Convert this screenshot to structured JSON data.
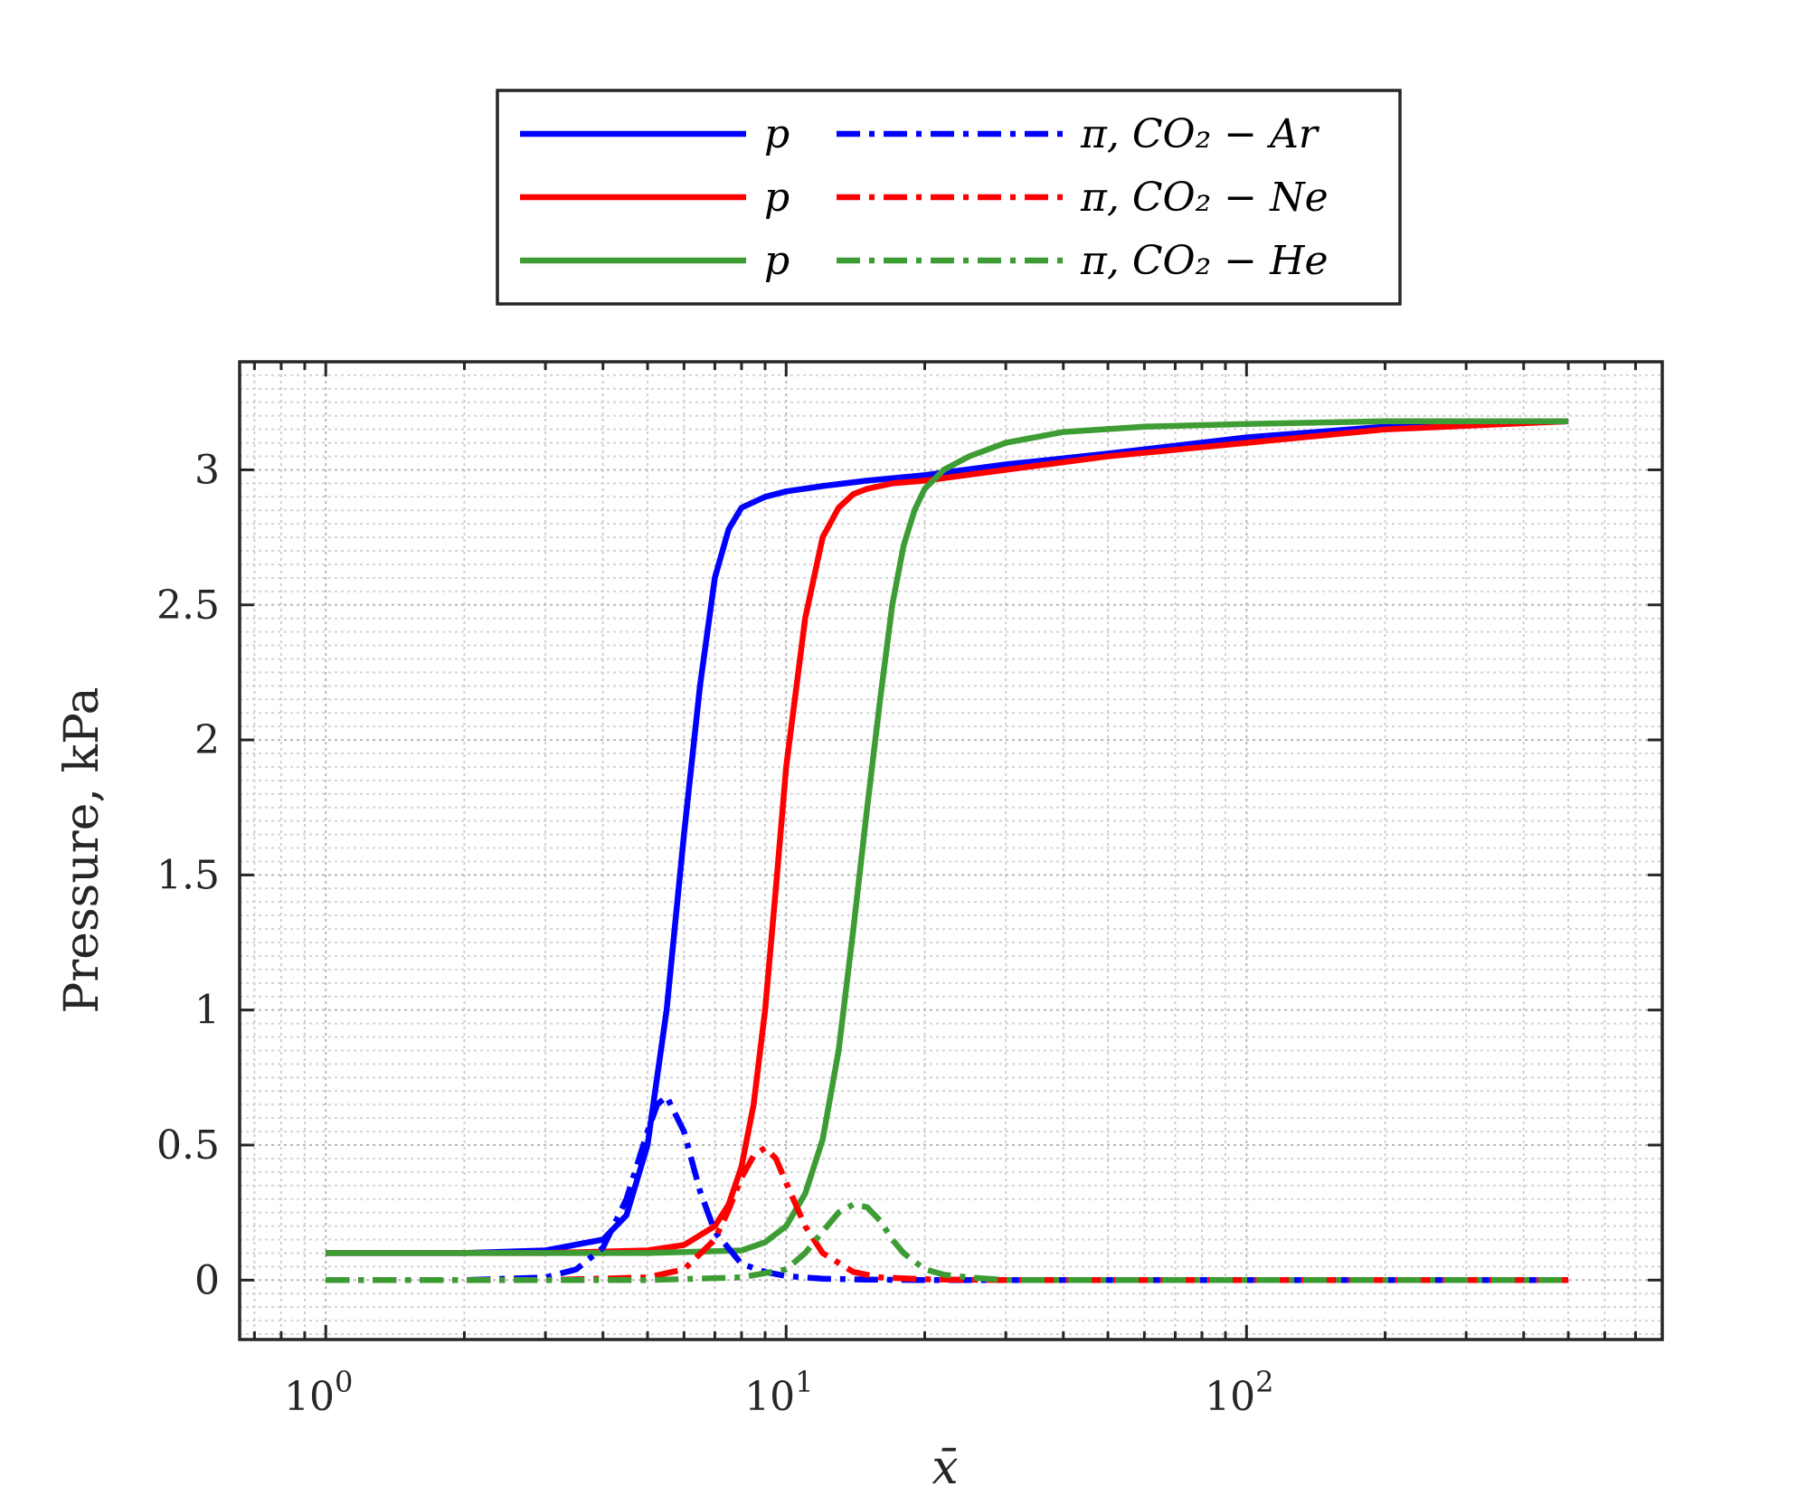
{
  "chart_data": {
    "type": "line",
    "xlabel": "x̄",
    "ylabel": "Pressure, kPa",
    "xscale": "log",
    "xlim": [
      0.65,
      800
    ],
    "ylim": [
      -0.22,
      3.4
    ],
    "grid": "on (major and minor, dotted)",
    "legend_position": "top, outside plot",
    "xticks": [
      {
        "value": 1,
        "base": "10",
        "exp": "0"
      },
      {
        "value": 10,
        "base": "10",
        "exp": "1"
      },
      {
        "value": 100,
        "base": "10",
        "exp": "2"
      }
    ],
    "yticks": [
      {
        "value": 0,
        "label": "0"
      },
      {
        "value": 0.5,
        "label": "0.5"
      },
      {
        "value": 1,
        "label": "1"
      },
      {
        "value": 1.5,
        "label": "1.5"
      },
      {
        "value": 2,
        "label": "2"
      },
      {
        "value": 2.5,
        "label": "2.5"
      },
      {
        "value": 3,
        "label": "3"
      }
    ],
    "series": [
      {
        "name": "p",
        "color": "#0000ff",
        "style": "solid",
        "x": [
          1,
          2,
          3,
          4,
          4.5,
          5,
          5.5,
          6,
          6.5,
          7,
          7.5,
          8,
          9,
          10,
          12,
          15,
          20,
          30,
          50,
          100,
          200,
          500
        ],
        "y": [
          0.1,
          0.1,
          0.11,
          0.15,
          0.24,
          0.5,
          1.0,
          1.65,
          2.2,
          2.6,
          2.78,
          2.86,
          2.9,
          2.92,
          2.94,
          2.96,
          2.98,
          3.02,
          3.06,
          3.12,
          3.16,
          3.18
        ]
      },
      {
        "name": "p",
        "color": "#ff0000",
        "style": "solid",
        "x": [
          1,
          3,
          5,
          6,
          7,
          7.5,
          8,
          8.5,
          9,
          9.5,
          10,
          11,
          12,
          13,
          14,
          15,
          17,
          20,
          30,
          50,
          100,
          200,
          500
        ],
        "y": [
          0.1,
          0.1,
          0.11,
          0.13,
          0.2,
          0.28,
          0.42,
          0.65,
          1.0,
          1.45,
          1.9,
          2.45,
          2.75,
          2.86,
          2.91,
          2.93,
          2.95,
          2.96,
          3.0,
          3.05,
          3.1,
          3.15,
          3.18
        ]
      },
      {
        "name": "p",
        "color": "#3e9c35",
        "style": "solid",
        "x": [
          1,
          5,
          8,
          9,
          10,
          11,
          12,
          13,
          14,
          15,
          16,
          17,
          18,
          19,
          20,
          22,
          25,
          30,
          40,
          60,
          100,
          200,
          500
        ],
        "y": [
          0.1,
          0.1,
          0.11,
          0.14,
          0.2,
          0.32,
          0.52,
          0.85,
          1.3,
          1.75,
          2.15,
          2.5,
          2.72,
          2.85,
          2.93,
          3.0,
          3.05,
          3.1,
          3.14,
          3.16,
          3.17,
          3.18,
          3.18
        ]
      },
      {
        "name": "π, CO₂ − Ar",
        "color": "#0000ff",
        "style": "dashdot",
        "x": [
          1,
          2,
          3,
          3.5,
          4,
          4.5,
          5,
          5.25,
          5.5,
          6,
          6.5,
          7,
          8,
          9,
          10,
          12,
          15,
          20,
          50,
          100,
          200,
          500
        ],
        "y": [
          0.0,
          0.0,
          0.01,
          0.04,
          0.12,
          0.3,
          0.55,
          0.65,
          0.68,
          0.55,
          0.33,
          0.18,
          0.06,
          0.03,
          0.015,
          0.005,
          0.002,
          0.0,
          0.0,
          0.0,
          0.0,
          0.0
        ]
      },
      {
        "name": "π, CO₂ − Ne",
        "color": "#ff0000",
        "style": "dashdot",
        "x": [
          1,
          3,
          5,
          6,
          7,
          7.5,
          8,
          8.5,
          9,
          9.5,
          10,
          11,
          12,
          14,
          16,
          20,
          30,
          50,
          100,
          500
        ],
        "y": [
          0.0,
          0.0,
          0.01,
          0.04,
          0.15,
          0.26,
          0.38,
          0.46,
          0.49,
          0.45,
          0.36,
          0.2,
          0.1,
          0.03,
          0.01,
          0.003,
          0.0,
          0.0,
          0.0,
          0.0
        ]
      },
      {
        "name": "π, CO₂ − He",
        "color": "#3e9c35",
        "style": "dashdot",
        "x": [
          1,
          5,
          8,
          10,
          11,
          12,
          13,
          14,
          15,
          16,
          17,
          18,
          20,
          22,
          25,
          30,
          50,
          100,
          500
        ],
        "y": [
          0.0,
          0.0,
          0.01,
          0.04,
          0.1,
          0.18,
          0.25,
          0.28,
          0.27,
          0.22,
          0.15,
          0.1,
          0.04,
          0.02,
          0.01,
          0.0,
          0.0,
          0.0,
          0.0
        ]
      }
    ],
    "legend": {
      "columns": [
        [
          {
            "label": "p",
            "color": "#0000ff",
            "style": "solid"
          },
          {
            "label": "p",
            "color": "#ff0000",
            "style": "solid"
          },
          {
            "label": "p",
            "color": "#3e9c35",
            "style": "solid"
          }
        ],
        [
          {
            "label": "π, CO₂ − Ar",
            "color": "#0000ff",
            "style": "dashdot"
          },
          {
            "label": "π, CO₂ − Ne",
            "color": "#ff0000",
            "style": "dashdot"
          },
          {
            "label": "π, CO₂ − He",
            "color": "#3e9c35",
            "style": "dashdot"
          }
        ]
      ]
    }
  }
}
